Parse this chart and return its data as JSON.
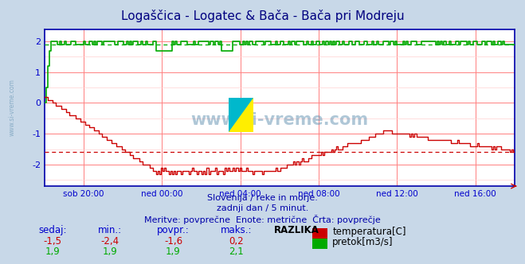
{
  "title": "Logaščica - Logatec & Bača - Bača pri Modreju",
  "title_color": "#000080",
  "bg_color": "#c8d8e8",
  "plot_bg_color": "#ffffff",
  "grid_color_major": "#ff8080",
  "grid_color_minor": "#ffd0d0",
  "tick_color": "#0000cc",
  "ylim": [
    -2.7,
    2.4
  ],
  "yticks": [
    -2,
    -1,
    0,
    1,
    2
  ],
  "xtick_labels": [
    "sob 20:00",
    "ned 00:00",
    "ned 04:00",
    "ned 08:00",
    "ned 12:00",
    "ned 16:00"
  ],
  "hline_avg_temp": -1.6,
  "hline_avg_flow": 1.9,
  "subtitle1": "Slovenija / reke in morje.",
  "subtitle2": "zadnji dan / 5 minut.",
  "subtitle3": "Meritve: povprečne  Enote: metrične  Črta: povprečje",
  "subtitle_color": "#0000aa",
  "table_headers": [
    "sedaj:",
    "min.:",
    "povpr.:",
    "maks.:",
    "RAZLIKA"
  ],
  "table_temp": [
    "-1,5",
    "-2,4",
    "-1,6",
    "0,2"
  ],
  "table_flow": [
    "1,9",
    "1,9",
    "1,9",
    "2,1"
  ],
  "legend_temp": "temperatura[C]",
  "legend_flow": "pretok[m3/s]",
  "temp_color": "#cc0000",
  "flow_color": "#00aa00",
  "watermark_color": "#6090b0",
  "n_points": 288
}
